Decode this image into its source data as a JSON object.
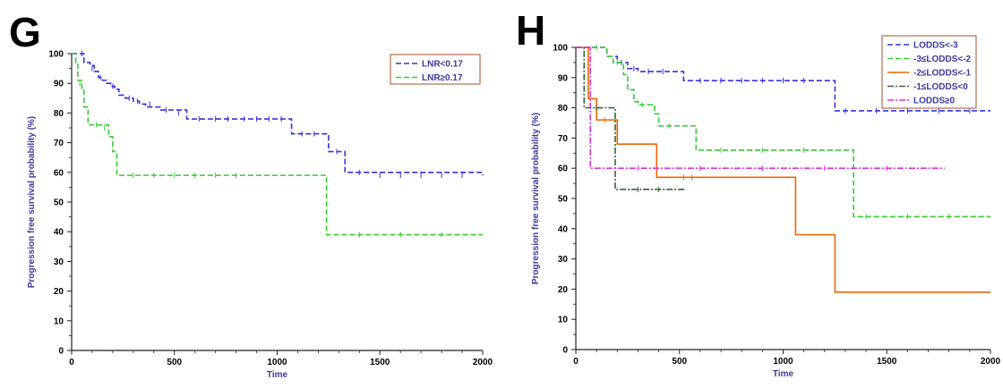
{
  "chart_data": [
    {
      "type": "line",
      "panel_label": "G",
      "xlabel": "Time",
      "ylabel": "Progression free survival probability (%)",
      "xlim": [
        0,
        2000
      ],
      "ylim": [
        0,
        100
      ],
      "x_ticks": [
        "0",
        "500",
        "1000",
        "1500",
        "2000"
      ],
      "y_ticks": [
        "0",
        "10",
        "20",
        "30",
        "40",
        "50",
        "60",
        "70",
        "80",
        "90",
        "100"
      ],
      "legend_position": "top-right",
      "series": [
        {
          "name": "LNR<0.17",
          "color": "#3333dd",
          "dash": "6,3",
          "steps": [
            [
              0,
              100
            ],
            [
              40,
              100
            ],
            [
              60,
              97
            ],
            [
              90,
              96
            ],
            [
              110,
              94
            ],
            [
              130,
              92
            ],
            [
              150,
              91
            ],
            [
              170,
              90
            ],
            [
              190,
              89
            ],
            [
              210,
              88
            ],
            [
              230,
              86
            ],
            [
              260,
              85
            ],
            [
              300,
              84
            ],
            [
              330,
              83
            ],
            [
              360,
              82
            ],
            [
              430,
              81
            ],
            [
              560,
              78
            ],
            [
              1070,
              73
            ],
            [
              1250,
              67
            ],
            [
              1330,
              60
            ],
            [
              2000,
              59
            ]
          ],
          "censors": [
            [
              50,
              100
            ],
            [
              100,
              95
            ],
            [
              140,
              92
            ],
            [
              200,
              89
            ],
            [
              280,
              85
            ],
            [
              320,
              84
            ],
            [
              380,
              83
            ],
            [
              460,
              81
            ],
            [
              520,
              80
            ],
            [
              620,
              78
            ],
            [
              700,
              78
            ],
            [
              760,
              78
            ],
            [
              840,
              78
            ],
            [
              900,
              78
            ],
            [
              960,
              78
            ],
            [
              1020,
              78
            ],
            [
              1120,
              73
            ],
            [
              1180,
              73
            ],
            [
              1290,
              67
            ],
            [
              1400,
              60
            ],
            [
              1500,
              59
            ],
            [
              1600,
              59
            ],
            [
              1700,
              59
            ],
            [
              1800,
              59
            ],
            [
              1900,
              59
            ]
          ]
        },
        {
          "name": "LNR≥0.17",
          "color": "#33cc33",
          "dash": "6,3",
          "steps": [
            [
              0,
              100
            ],
            [
              20,
              97
            ],
            [
              30,
              91
            ],
            [
              50,
              88
            ],
            [
              60,
              82
            ],
            [
              80,
              76
            ],
            [
              180,
              72
            ],
            [
              200,
              67
            ],
            [
              220,
              59
            ],
            [
              1240,
              39
            ],
            [
              2000,
              39
            ]
          ],
          "censors": [
            [
              40,
              90
            ],
            [
              120,
              76
            ],
            [
              160,
              75
            ],
            [
              300,
              59
            ],
            [
              400,
              59
            ],
            [
              500,
              59
            ],
            [
              600,
              59
            ],
            [
              700,
              59
            ],
            [
              800,
              59
            ],
            [
              1400,
              39
            ],
            [
              1600,
              39
            ],
            [
              1800,
              39
            ]
          ]
        }
      ]
    },
    {
      "type": "line",
      "panel_label": "H",
      "xlabel": "Time",
      "ylabel": "Progression free survival probability (%)",
      "xlim": [
        0,
        2000
      ],
      "ylim": [
        0,
        100
      ],
      "x_ticks": [
        "0",
        "500",
        "1000",
        "1500",
        "2000"
      ],
      "y_ticks": [
        "0",
        "10",
        "20",
        "30",
        "40",
        "50",
        "60",
        "70",
        "80",
        "90",
        "100"
      ],
      "legend_position": "top-right",
      "series": [
        {
          "name": "LODDS<-3",
          "color": "#3333dd",
          "dash": "6,3",
          "steps": [
            [
              0,
              100
            ],
            [
              150,
              97
            ],
            [
              200,
              95
            ],
            [
              250,
              93
            ],
            [
              300,
              92
            ],
            [
              520,
              89
            ],
            [
              1250,
              79
            ],
            [
              2000,
              79
            ]
          ],
          "censors": [
            [
              220,
              95
            ],
            [
              280,
              93
            ],
            [
              350,
              92
            ],
            [
              420,
              92
            ],
            [
              600,
              89
            ],
            [
              700,
              89
            ],
            [
              800,
              89
            ],
            [
              900,
              89
            ],
            [
              1000,
              89
            ],
            [
              1100,
              89
            ],
            [
              1300,
              79
            ],
            [
              1450,
              79
            ],
            [
              1600,
              79
            ],
            [
              1750,
              79
            ],
            [
              1900,
              79
            ]
          ]
        },
        {
          "name": "-3≤LODDS<-2",
          "color": "#33cc33",
          "dash": "6,3",
          "steps": [
            [
              0,
              100
            ],
            [
              150,
              97
            ],
            [
              180,
              95
            ],
            [
              230,
              91
            ],
            [
              250,
              86
            ],
            [
              280,
              82
            ],
            [
              300,
              81
            ],
            [
              380,
              78
            ],
            [
              400,
              74
            ],
            [
              580,
              66
            ],
            [
              1340,
              44
            ],
            [
              2000,
              44
            ]
          ],
          "censors": [
            [
              100,
              100
            ],
            [
              200,
              95
            ],
            [
              320,
              81
            ],
            [
              450,
              74
            ],
            [
              700,
              66
            ],
            [
              900,
              66
            ],
            [
              1100,
              66
            ],
            [
              1400,
              44
            ],
            [
              1600,
              44
            ],
            [
              1800,
              44
            ]
          ]
        },
        {
          "name": "-2≤LODDS<-1",
          "color": "#ee6600",
          "dash": "",
          "steps": [
            [
              0,
              100
            ],
            [
              50,
              100
            ],
            [
              60,
              83
            ],
            [
              100,
              76
            ],
            [
              200,
              68
            ],
            [
              390,
              57
            ],
            [
              1060,
              38
            ],
            [
              1250,
              19
            ],
            [
              2000,
              19
            ]
          ],
          "censors": [
            [
              140,
              76
            ],
            [
              520,
              57
            ],
            [
              560,
              57
            ]
          ]
        },
        {
          "name": "-1≤LODDS<0",
          "color": "#336633",
          "dash": "7,2,2,2",
          "steps": [
            [
              0,
              100
            ],
            [
              40,
              80
            ],
            [
              190,
              53
            ],
            [
              530,
              53
            ]
          ],
          "censors": [
            [
              100,
              80
            ],
            [
              300,
              53
            ],
            [
              400,
              53
            ]
          ]
        },
        {
          "name": "LODDS≥0",
          "color": "#dd33dd",
          "dash": "7,2,2,2",
          "steps": [
            [
              0,
              100
            ],
            [
              60,
              100
            ],
            [
              70,
              60
            ],
            [
              1780,
              60
            ]
          ],
          "censors": [
            [
              300,
              60
            ],
            [
              600,
              60
            ],
            [
              900,
              60
            ],
            [
              1200,
              60
            ],
            [
              1500,
              60
            ]
          ]
        }
      ]
    }
  ]
}
